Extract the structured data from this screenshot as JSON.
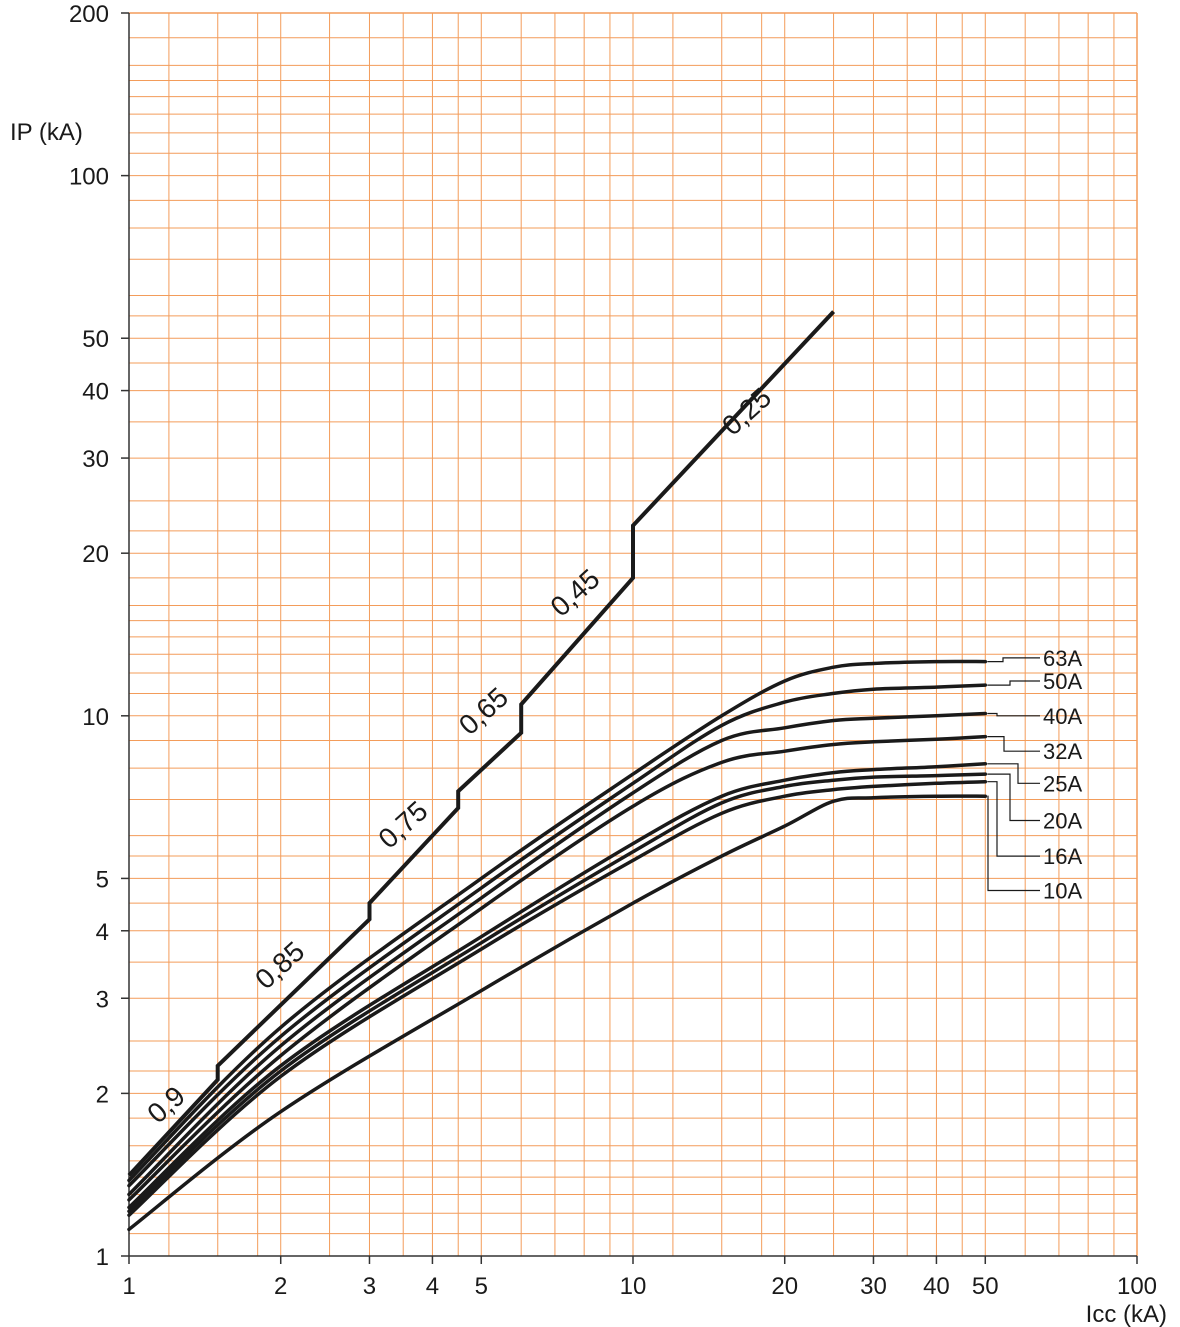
{
  "chart_data": {
    "type": "line",
    "title": "",
    "xlabel": "Icc (kA)",
    "ylabel": "IP (kA)",
    "x_scale": "log",
    "y_scale": "log",
    "xlim": [
      1,
      100
    ],
    "ylim": [
      1,
      200
    ],
    "grid": true,
    "grid_color": "#f39c5a",
    "line_color": "#1a1a1a",
    "x_ticks": [
      {
        "value": 1,
        "label": "1"
      },
      {
        "value": 2,
        "label": "2"
      },
      {
        "value": 3,
        "label": "3"
      },
      {
        "value": 4,
        "label": "4"
      },
      {
        "value": 5,
        "label": "5"
      },
      {
        "value": 10,
        "label": "10"
      },
      {
        "value": 20,
        "label": "20"
      },
      {
        "value": 30,
        "label": "30"
      },
      {
        "value": 40,
        "label": "40"
      },
      {
        "value": 50,
        "label": "50"
      },
      {
        "value": 100,
        "label": "100"
      }
    ],
    "y_ticks": [
      {
        "value": 1,
        "label": "1"
      },
      {
        "value": 2,
        "label": "2"
      },
      {
        "value": 3,
        "label": "3"
      },
      {
        "value": 4,
        "label": "4"
      },
      {
        "value": 5,
        "label": "5"
      },
      {
        "value": 10,
        "label": "10"
      },
      {
        "value": 20,
        "label": "20"
      },
      {
        "value": 30,
        "label": "30"
      },
      {
        "value": 40,
        "label": "40"
      },
      {
        "value": 50,
        "label": "50"
      },
      {
        "value": 100,
        "label": "100"
      },
      {
        "value": 200,
        "label": "200"
      }
    ],
    "power_factor_curve": {
      "points": [
        [
          1,
          1.41
        ],
        [
          1.5,
          2.12
        ],
        [
          1.5,
          2.25
        ],
        [
          3,
          4.2
        ],
        [
          3,
          4.5
        ],
        [
          4.5,
          6.75
        ],
        [
          4.5,
          7.25
        ],
        [
          6,
          9.3
        ],
        [
          6,
          10.5
        ],
        [
          10,
          18
        ],
        [
          10,
          22.5
        ],
        [
          25,
          56
        ]
      ],
      "labels": [
        {
          "text": "0,9",
          "x": 1.22,
          "y": 1.85
        },
        {
          "text": "0,85",
          "x": 2.05,
          "y": 3.35
        },
        {
          "text": "0,75",
          "x": 3.6,
          "y": 6.1
        },
        {
          "text": "0,65",
          "x": 5.2,
          "y": 9.9
        },
        {
          "text": "0,45",
          "x": 7.9,
          "y": 16.4
        },
        {
          "text": "0,25",
          "x": 17.3,
          "y": 35.5
        }
      ]
    },
    "series": [
      {
        "name": "63A",
        "label_y": 12.8,
        "points": [
          [
            1,
            1.38
          ],
          [
            2,
            2.65
          ],
          [
            5,
            5.0
          ],
          [
            10,
            7.8
          ],
          [
            15,
            10.0
          ],
          [
            20,
            11.6
          ],
          [
            25,
            12.3
          ],
          [
            30,
            12.5
          ],
          [
            40,
            12.6
          ],
          [
            50,
            12.6
          ]
        ]
      },
      {
        "name": "50A",
        "label_y": 11.6,
        "points": [
          [
            1,
            1.35
          ],
          [
            2,
            2.55
          ],
          [
            5,
            4.8
          ],
          [
            10,
            7.5
          ],
          [
            15,
            9.6
          ],
          [
            20,
            10.6
          ],
          [
            25,
            11.0
          ],
          [
            30,
            11.2
          ],
          [
            40,
            11.3
          ],
          [
            50,
            11.4
          ]
        ]
      },
      {
        "name": "40A",
        "label_y": 10.0,
        "points": [
          [
            1,
            1.3
          ],
          [
            2,
            2.45
          ],
          [
            5,
            4.6
          ],
          [
            10,
            7.2
          ],
          [
            15,
            9.0
          ],
          [
            20,
            9.5
          ],
          [
            25,
            9.8
          ],
          [
            30,
            9.9
          ],
          [
            40,
            10.0
          ],
          [
            50,
            10.1
          ]
        ]
      },
      {
        "name": "32A",
        "label_y": 8.6,
        "points": [
          [
            1,
            1.27
          ],
          [
            2,
            2.35
          ],
          [
            5,
            4.4
          ],
          [
            10,
            6.8
          ],
          [
            15,
            8.2
          ],
          [
            20,
            8.6
          ],
          [
            25,
            8.85
          ],
          [
            30,
            8.95
          ],
          [
            40,
            9.05
          ],
          [
            50,
            9.15
          ]
        ]
      },
      {
        "name": "25A",
        "label_y": 7.5,
        "points": [
          [
            1,
            1.23
          ],
          [
            2,
            2.25
          ],
          [
            5,
            3.9
          ],
          [
            10,
            5.8
          ],
          [
            15,
            7.1
          ],
          [
            20,
            7.6
          ],
          [
            25,
            7.85
          ],
          [
            30,
            7.95
          ],
          [
            40,
            8.05
          ],
          [
            50,
            8.15
          ]
        ]
      },
      {
        "name": "20A",
        "label_y": 6.4,
        "points": [
          [
            1,
            1.21
          ],
          [
            2,
            2.2
          ],
          [
            5,
            3.8
          ],
          [
            10,
            5.6
          ],
          [
            15,
            6.9
          ],
          [
            20,
            7.4
          ],
          [
            25,
            7.6
          ],
          [
            30,
            7.7
          ],
          [
            40,
            7.75
          ],
          [
            50,
            7.8
          ]
        ]
      },
      {
        "name": "16A",
        "label_y": 5.5,
        "points": [
          [
            1,
            1.19
          ],
          [
            2,
            2.15
          ],
          [
            5,
            3.7
          ],
          [
            10,
            5.4
          ],
          [
            15,
            6.6
          ],
          [
            20,
            7.1
          ],
          [
            25,
            7.3
          ],
          [
            30,
            7.4
          ],
          [
            40,
            7.5
          ],
          [
            50,
            7.55
          ]
        ]
      },
      {
        "name": "10A",
        "label_y": 4.75,
        "points": [
          [
            1,
            1.12
          ],
          [
            2,
            1.85
          ],
          [
            5,
            3.1
          ],
          [
            10,
            4.5
          ],
          [
            15,
            5.5
          ],
          [
            20,
            6.25
          ],
          [
            25,
            6.95
          ],
          [
            30,
            7.05
          ],
          [
            40,
            7.1
          ],
          [
            50,
            7.1
          ]
        ]
      }
    ]
  }
}
